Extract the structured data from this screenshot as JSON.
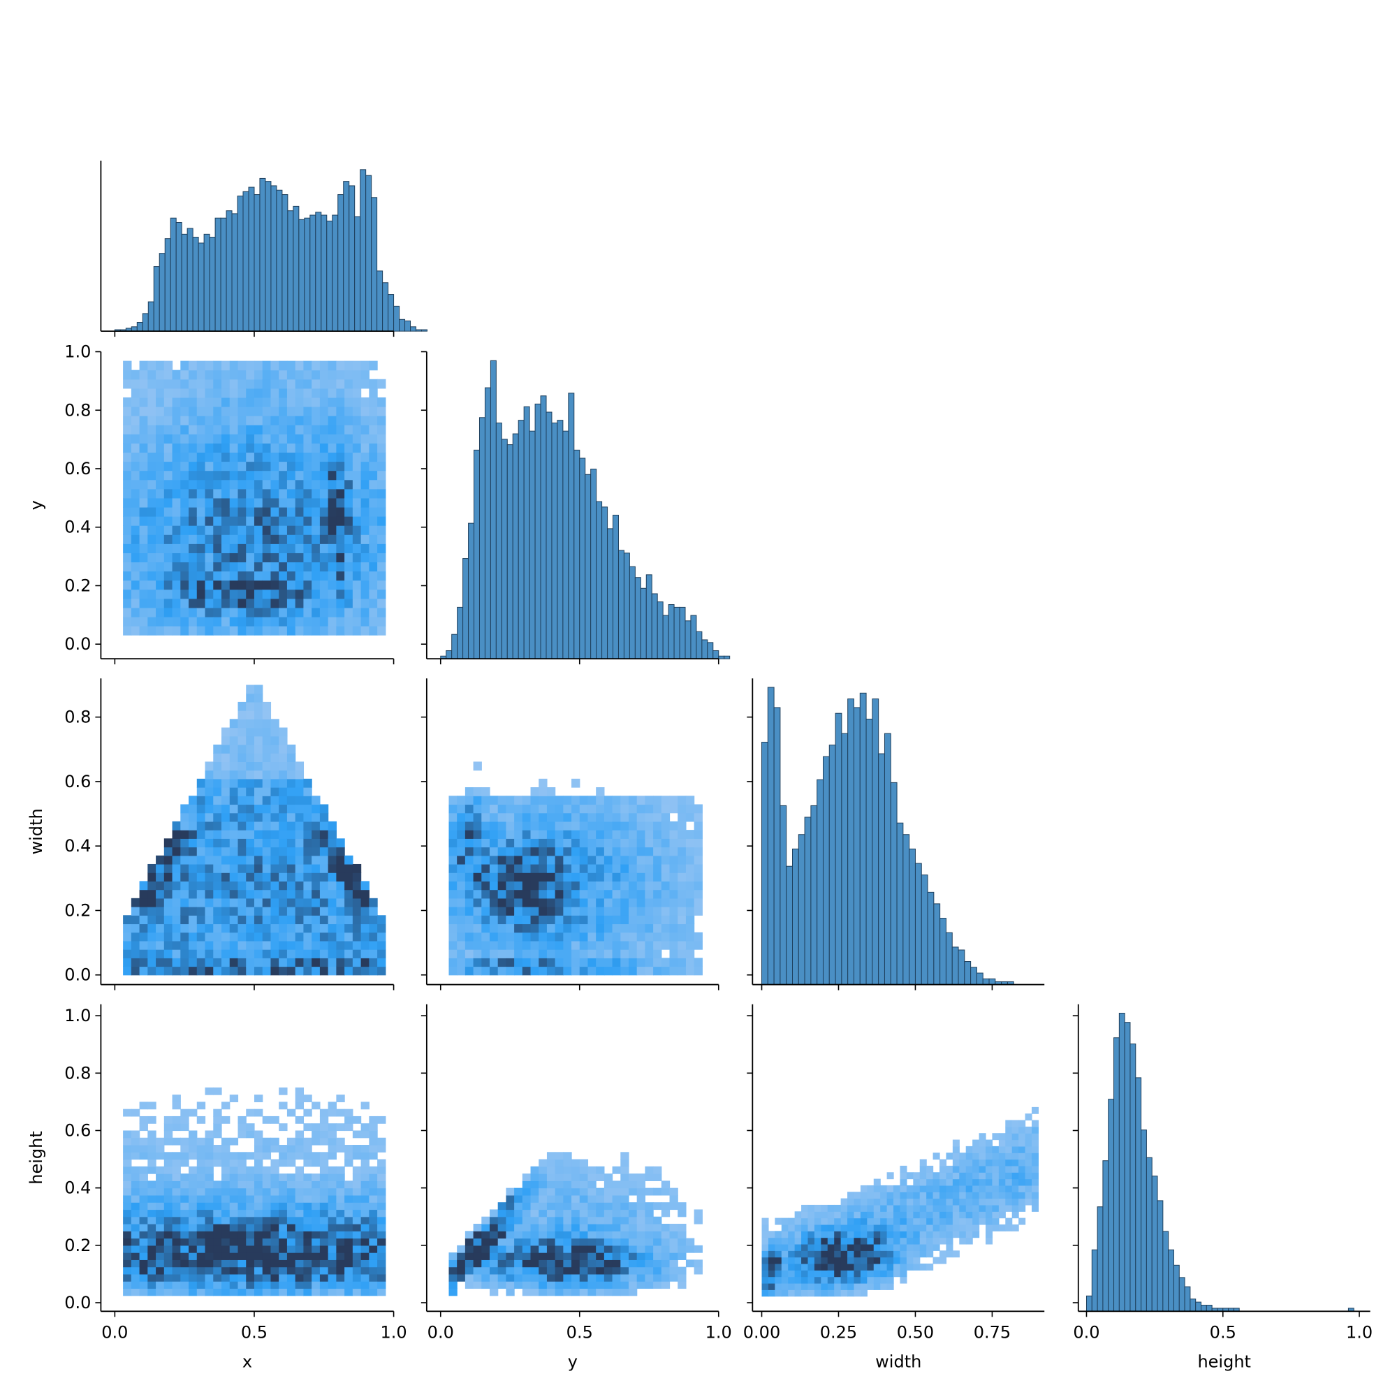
{
  "chart_data": {
    "type": "pairplot",
    "variables": [
      "x",
      "y",
      "width",
      "height"
    ],
    "colors": {
      "bar_fill": "#4a8fc4",
      "bar_edge": "#1e3f5c",
      "cmap_low": "#a9cbf2",
      "cmap_mid": "#2fa0f5",
      "cmap_high": "#283b5c"
    },
    "axes": {
      "x": {
        "label": "x",
        "range": [
          -0.05,
          1.0
        ],
        "ticks": [
          0.0,
          0.5,
          1.0
        ],
        "tick_labels": [
          "0.0",
          "0.5",
          "1.0"
        ]
      },
      "y": {
        "label": "y",
        "range": [
          -0.05,
          1.0
        ],
        "ticks": [
          0.0,
          0.2,
          0.4,
          0.6,
          0.8,
          1.0
        ],
        "tick_labels": [
          "0.0",
          "0.2",
          "0.4",
          "0.6",
          "0.8",
          "1.0"
        ],
        "x_ticks": [
          0.0,
          0.5,
          1.0
        ],
        "x_tick_labels": [
          "0.0",
          "0.5",
          "1.0"
        ]
      },
      "width": {
        "label": "width",
        "range": [
          -0.03,
          0.92
        ],
        "ticks": [
          0.0,
          0.2,
          0.4,
          0.6,
          0.8
        ],
        "tick_labels": [
          "0.0",
          "0.2",
          "0.4",
          "0.6",
          "0.8"
        ],
        "x_ticks": [
          0.0,
          0.25,
          0.5,
          0.75
        ],
        "x_tick_labels": [
          "0.00",
          "0.25",
          "0.50",
          "0.75"
        ]
      },
      "height": {
        "label": "height",
        "range": [
          -0.03,
          1.04
        ],
        "ticks": [
          0.0,
          0.2,
          0.4,
          0.6,
          0.8,
          1.0
        ],
        "tick_labels": [
          "0.0",
          "0.2",
          "0.4",
          "0.6",
          "0.8",
          "1.0"
        ],
        "x_ticks": [
          0.0,
          0.5,
          1.0
        ],
        "x_tick_labels": [
          "0.0",
          "0.5",
          "1.0"
        ]
      }
    },
    "histograms": {
      "x": {
        "start": 0.0,
        "bin_width": 0.02,
        "counts": [
          1,
          1,
          2,
          3,
          6,
          12,
          20,
          44,
          53,
          63,
          77,
          74,
          66,
          70,
          64,
          60,
          66,
          64,
          77,
          77,
          82,
          80,
          92,
          95,
          98,
          93,
          104,
          102,
          99,
          96,
          93,
          82,
          85,
          76,
          77,
          79,
          81,
          79,
          75,
          79,
          93,
          102,
          99,
          78,
          110,
          106,
          91,
          41,
          33,
          25,
          17,
          8,
          7,
          3,
          1,
          1
        ]
      },
      "y": {
        "start": 0.0,
        "bin_width": 0.02,
        "counts": [
          1,
          3,
          9,
          19,
          37,
          50,
          77,
          89,
          100,
          110,
          87,
          81,
          79,
          83,
          88,
          93,
          84,
          94,
          97,
          91,
          87,
          88,
          84,
          98,
          77,
          74,
          68,
          70,
          58,
          56,
          48,
          53,
          40,
          39,
          34,
          30,
          26,
          31,
          24,
          21,
          16,
          20,
          19,
          19,
          14,
          16,
          10,
          7,
          6,
          3,
          1,
          1
        ]
      },
      "width": {
        "start": 0.0,
        "bin_width": 0.02,
        "counts": [
          84,
          103,
          96,
          62,
          41,
          47,
          52,
          58,
          62,
          71,
          79,
          83,
          94,
          87,
          99,
          96,
          101,
          92,
          99,
          80,
          87,
          70,
          56,
          52,
          47,
          42,
          38,
          32,
          28,
          23,
          18,
          13,
          12,
          8,
          6,
          4,
          2,
          2,
          1,
          1,
          1
        ]
      },
      "height": {
        "start": 0.0,
        "bin_width": 0.02,
        "counts": [
          5,
          20,
          34,
          49,
          69,
          89,
          97,
          94,
          87,
          76,
          59,
          50,
          44,
          36,
          26,
          20,
          15,
          11,
          8,
          4,
          3,
          2,
          2,
          1,
          1,
          1,
          1,
          1,
          0,
          0,
          0,
          0,
          0,
          0,
          0,
          0,
          0,
          0,
          0,
          0,
          0,
          0,
          0,
          0,
          0,
          0,
          0,
          0,
          1,
          0
        ]
      }
    },
    "heatmaps": [
      {
        "x": "x",
        "y": "y",
        "x_bin": 0.035,
        "y_bin": 0.02,
        "description_rows_are_y_bins": true
      },
      {
        "x": "x",
        "y": "width"
      },
      {
        "x": "y",
        "y": "width"
      },
      {
        "x": "x",
        "y": "height"
      },
      {
        "x": "y",
        "y": "height"
      },
      {
        "x": "width",
        "y": "height"
      }
    ],
    "grid": false,
    "legend": "none",
    "layout": "corner"
  }
}
